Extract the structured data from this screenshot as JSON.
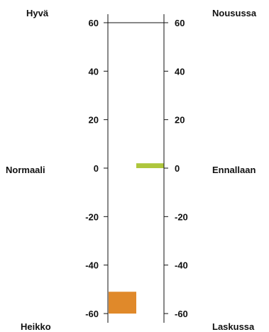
{
  "labels": {
    "top_left": "Hyvä",
    "middle_left": "Normaali",
    "bottom_left": "Heikko",
    "top_right": "Nousussa",
    "middle_right": "Ennallaan",
    "bottom_right": "Laskussa"
  },
  "chart_data": {
    "type": "bar",
    "ylim": [
      -60,
      60
    ],
    "yticks": [
      60,
      40,
      20,
      0,
      -20,
      -40,
      -60
    ],
    "grid": false,
    "series": [
      {
        "values": [
          -51
        ],
        "color": "#e0892a"
      },
      {
        "values": [
          2
        ],
        "color": "#aec63c"
      }
    ],
    "axis_left_labels": [
      "Hyvä",
      "Normaali",
      "Heikko"
    ],
    "axis_right_labels": [
      "Nousussa",
      "Ennallaan",
      "Laskussa"
    ]
  }
}
